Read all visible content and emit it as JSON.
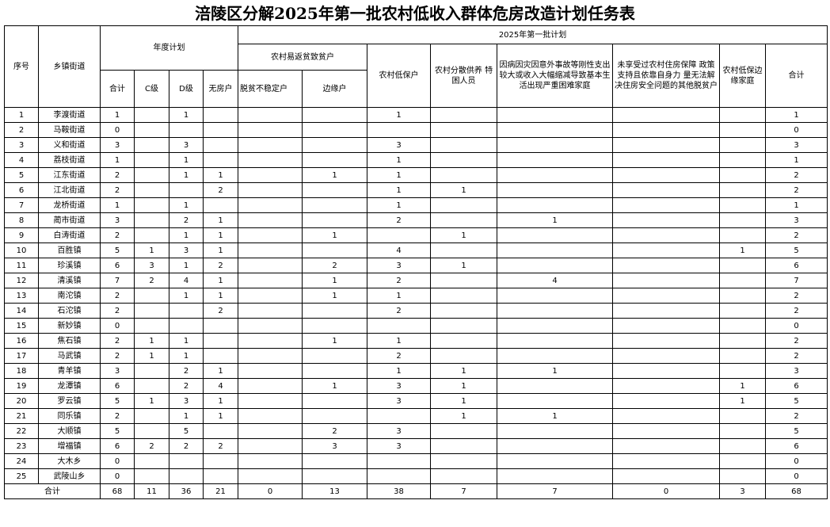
{
  "title": "涪陵区分解2025年第一批农村低收入群体危房改造计划任务表",
  "header": {
    "seq": "序号",
    "town": "乡镇街道",
    "annual_plan": "年度计划",
    "annual_sub": [
      "合计",
      "C级",
      "D级",
      "无房户"
    ],
    "batch_plan": "2025年第一批计划",
    "poverty_risk": "农村易返贫致贫户",
    "unstable": "脱贫不稳定户",
    "marginal": "边缘户",
    "dibao": "农村低保户",
    "scattered": "农村分散供养 特困人员",
    "hardship": "因病因灾因意外事故等刚性支出较大或收入大幅缩减导致基本生活出现严重困难家庭",
    "other": "未享受过农村住房保障 政策支持且依靠自身力 量无法解决住房安全问题的其他脱贫户",
    "dibao_marginal": "农村低保边缘家庭",
    "total": "合计"
  },
  "rows": [
    [
      "1",
      "李渡街道",
      "1",
      "",
      "1",
      "",
      "",
      "",
      "1",
      "",
      "",
      "",
      "",
      "1"
    ],
    [
      "2",
      "马鞍街道",
      "0",
      "",
      "",
      "",
      "",
      "",
      "",
      "",
      "",
      "",
      "",
      "0"
    ],
    [
      "3",
      "义和街道",
      "3",
      "",
      "3",
      "",
      "",
      "",
      "3",
      "",
      "",
      "",
      "",
      "3"
    ],
    [
      "4",
      "荔枝街道",
      "1",
      "",
      "1",
      "",
      "",
      "",
      "1",
      "",
      "",
      "",
      "",
      "1"
    ],
    [
      "5",
      "江东街道",
      "2",
      "",
      "1",
      "1",
      "",
      "1",
      "1",
      "",
      "",
      "",
      "",
      "2"
    ],
    [
      "6",
      "江北街道",
      "2",
      "",
      "",
      "2",
      "",
      "",
      "1",
      "1",
      "",
      "",
      "",
      "2"
    ],
    [
      "7",
      "龙桥街道",
      "1",
      "",
      "1",
      "",
      "",
      "",
      "1",
      "",
      "",
      "",
      "",
      "1"
    ],
    [
      "8",
      "蔺市街道",
      "3",
      "",
      "2",
      "1",
      "",
      "",
      "2",
      "",
      "1",
      "",
      "",
      "3"
    ],
    [
      "9",
      "白涛街道",
      "2",
      "",
      "1",
      "1",
      "",
      "1",
      "",
      "1",
      "",
      "",
      "",
      "2"
    ],
    [
      "10",
      "百胜镇",
      "5",
      "1",
      "3",
      "1",
      "",
      "",
      "4",
      "",
      "",
      "",
      "1",
      "5"
    ],
    [
      "11",
      "珍溪镇",
      "6",
      "3",
      "1",
      "2",
      "",
      "2",
      "3",
      "1",
      "",
      "",
      "",
      "6"
    ],
    [
      "12",
      "清溪镇",
      "7",
      "2",
      "4",
      "1",
      "",
      "1",
      "2",
      "",
      "4",
      "",
      "",
      "7"
    ],
    [
      "13",
      "南沱镇",
      "2",
      "",
      "1",
      "1",
      "",
      "1",
      "1",
      "",
      "",
      "",
      "",
      "2"
    ],
    [
      "14",
      "石沱镇",
      "2",
      "",
      "",
      "2",
      "",
      "",
      "2",
      "",
      "",
      "",
      "",
      "2"
    ],
    [
      "15",
      "新妙镇",
      "0",
      "",
      "",
      "",
      "",
      "",
      "",
      "",
      "",
      "",
      "",
      "0"
    ],
    [
      "16",
      "焦石镇",
      "2",
      "1",
      "1",
      "",
      "",
      "1",
      "1",
      "",
      "",
      "",
      "",
      "2"
    ],
    [
      "17",
      "马武镇",
      "2",
      "1",
      "1",
      "",
      "",
      "",
      "2",
      "",
      "",
      "",
      "",
      "2"
    ],
    [
      "18",
      "青羊镇",
      "3",
      "",
      "2",
      "1",
      "",
      "",
      "1",
      "1",
      "1",
      "",
      "",
      "3"
    ],
    [
      "19",
      "龙潭镇",
      "6",
      "",
      "2",
      "4",
      "",
      "1",
      "3",
      "1",
      "",
      "",
      "1",
      "6"
    ],
    [
      "20",
      "罗云镇",
      "5",
      "1",
      "3",
      "1",
      "",
      "",
      "3",
      "1",
      "",
      "",
      "1",
      "5"
    ],
    [
      "21",
      "同乐镇",
      "2",
      "",
      "1",
      "1",
      "",
      "",
      "",
      "1",
      "1",
      "",
      "",
      "2"
    ],
    [
      "22",
      "大顺镇",
      "5",
      "",
      "5",
      "",
      "",
      "2",
      "3",
      "",
      "",
      "",
      "",
      "5"
    ],
    [
      "23",
      "增福镇",
      "6",
      "2",
      "2",
      "2",
      "",
      "3",
      "3",
      "",
      "",
      "",
      "",
      "6"
    ],
    [
      "24",
      "大木乡",
      "0",
      "",
      "",
      "",
      "",
      "",
      "",
      "",
      "",
      "",
      "",
      "0"
    ],
    [
      "25",
      "武陵山乡",
      "0",
      "",
      "",
      "",
      "",
      "",
      "",
      "",
      "",
      "",
      "",
      "0"
    ]
  ],
  "total_row": {
    "label": "合计",
    "values": [
      "68",
      "11",
      "36",
      "21",
      "0",
      "13",
      "38",
      "7",
      "7",
      "0",
      "3",
      "68"
    ]
  }
}
